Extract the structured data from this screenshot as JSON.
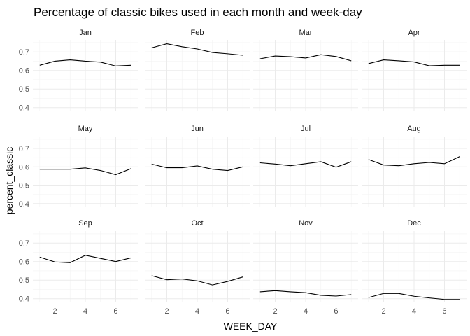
{
  "chart_data": {
    "type": "line",
    "title": "Percentage of classic bikes used in each month and week-day",
    "xlabel": "WEEK_DAY",
    "ylabel": "percent_classic",
    "x": [
      1,
      2,
      3,
      4,
      5,
      6,
      7
    ],
    "xlim": [
      0.55,
      7.45
    ],
    "ylim": [
      0.38,
      0.765
    ],
    "x_ticks": [
      2,
      4,
      6
    ],
    "y_ticks": [
      0.4,
      0.5,
      0.6,
      0.7
    ],
    "x_tick_labels": [
      "2",
      "4",
      "6"
    ],
    "y_tick_labels": [
      "0.4",
      "0.5",
      "0.6",
      "0.7"
    ],
    "grid": true,
    "facets": [
      {
        "name": "Jan",
        "values": [
          0.628,
          0.65,
          0.657,
          0.65,
          0.645,
          0.624,
          0.628
        ]
      },
      {
        "name": "Feb",
        "values": [
          0.722,
          0.744,
          0.728,
          0.716,
          0.697,
          0.69,
          0.682
        ]
      },
      {
        "name": "Mar",
        "values": [
          0.663,
          0.678,
          0.674,
          0.667,
          0.685,
          0.675,
          0.652
        ]
      },
      {
        "name": "Apr",
        "values": [
          0.637,
          0.657,
          0.652,
          0.646,
          0.625,
          0.628,
          0.628
        ]
      },
      {
        "name": "May",
        "values": [
          0.587,
          0.587,
          0.587,
          0.594,
          0.58,
          0.557,
          0.59
        ]
      },
      {
        "name": "Jun",
        "values": [
          0.615,
          0.595,
          0.595,
          0.605,
          0.587,
          0.58,
          0.6
        ]
      },
      {
        "name": "Jul",
        "values": [
          0.622,
          0.615,
          0.606,
          0.617,
          0.628,
          0.598,
          0.628
        ]
      },
      {
        "name": "Aug",
        "values": [
          0.64,
          0.61,
          0.606,
          0.617,
          0.624,
          0.617,
          0.656
        ]
      },
      {
        "name": "Sep",
        "values": [
          0.624,
          0.598,
          0.594,
          0.634,
          0.617,
          0.6,
          0.62
        ]
      },
      {
        "name": "Oct",
        "values": [
          0.524,
          0.502,
          0.506,
          0.496,
          0.474,
          0.493,
          0.517
        ]
      },
      {
        "name": "Nov",
        "values": [
          0.437,
          0.443,
          0.437,
          0.432,
          0.418,
          0.414,
          0.422
        ]
      },
      {
        "name": "Dec",
        "values": [
          0.406,
          0.428,
          0.428,
          0.413,
          0.404,
          0.396,
          0.396
        ]
      }
    ]
  }
}
